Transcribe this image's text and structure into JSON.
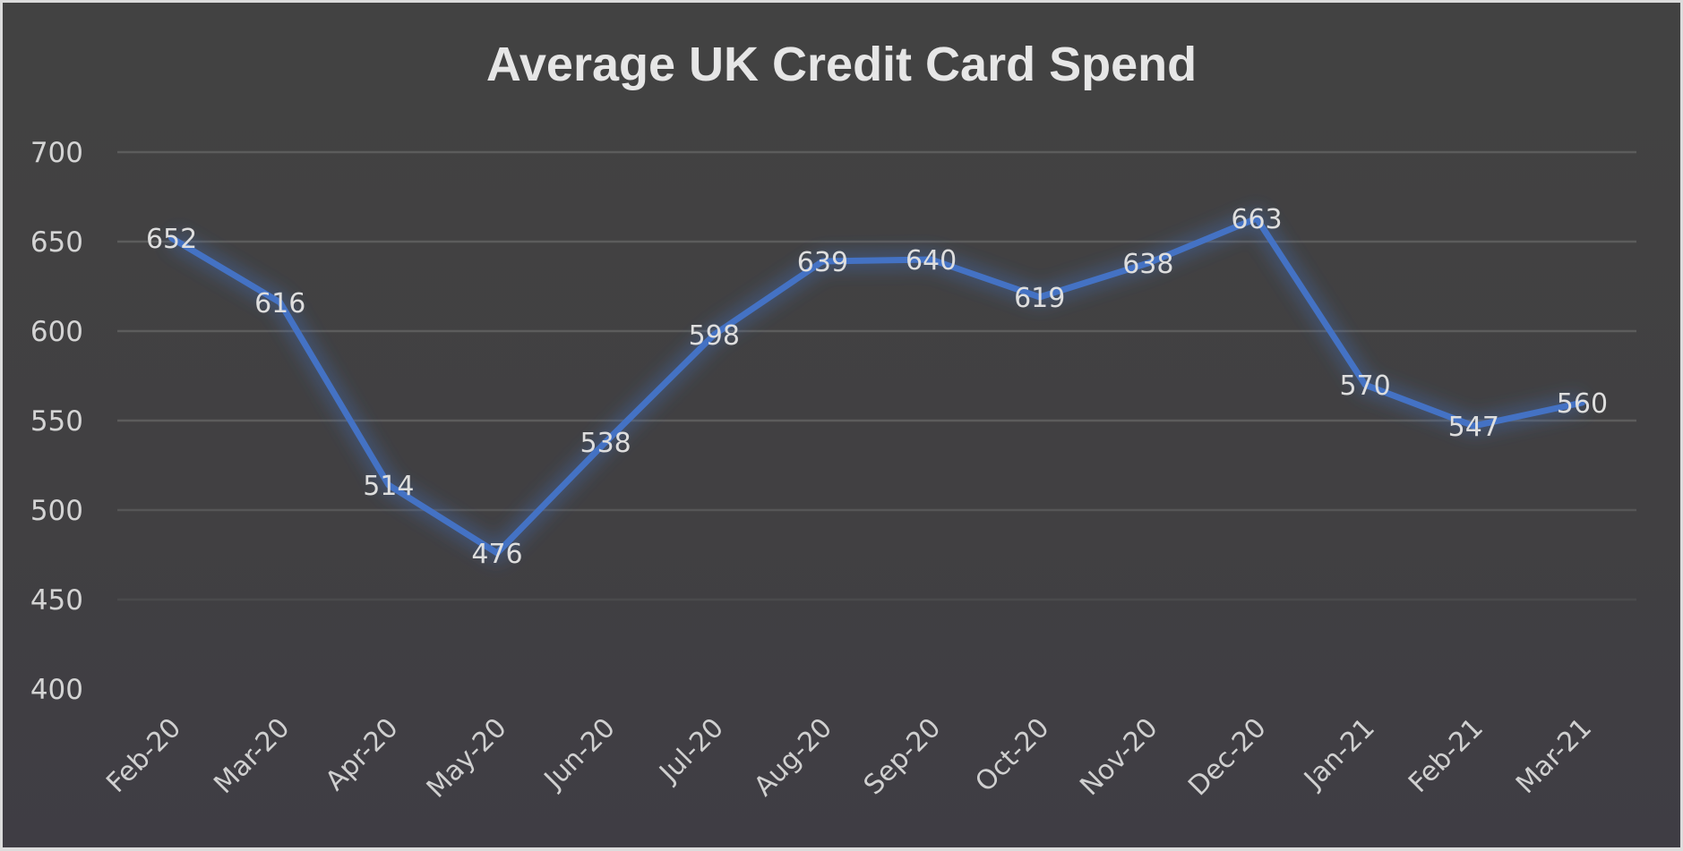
{
  "chart_data": {
    "type": "line",
    "title": "Average UK Credit Card Spend",
    "xlabel": "",
    "ylabel": "",
    "categories": [
      "Feb-20",
      "Mar-20",
      "Apr-20",
      "May-20",
      "Jun-20",
      "Jul-20",
      "Aug-20",
      "Sep-20",
      "Oct-20",
      "Nov-20",
      "Dec-20",
      "Jan-21",
      "Feb-21",
      "Mar-21"
    ],
    "series": [
      {
        "name": "Average UK Credit Card Spend",
        "values": [
          652,
          616,
          514,
          476,
          538,
          598,
          639,
          640,
          619,
          638,
          663,
          570,
          547,
          560
        ],
        "color": "#4472c4"
      }
    ],
    "ylim": [
      400,
      700
    ],
    "yticks": [
      "700",
      "650",
      "600",
      "550",
      "500",
      "450",
      "400"
    ],
    "grid": true,
    "legend": "none",
    "data_labels": true
  },
  "colors": {
    "background": "#424242",
    "line": "#4472c4",
    "grid": "#5a5a5a",
    "text": "#d8d8d8"
  }
}
